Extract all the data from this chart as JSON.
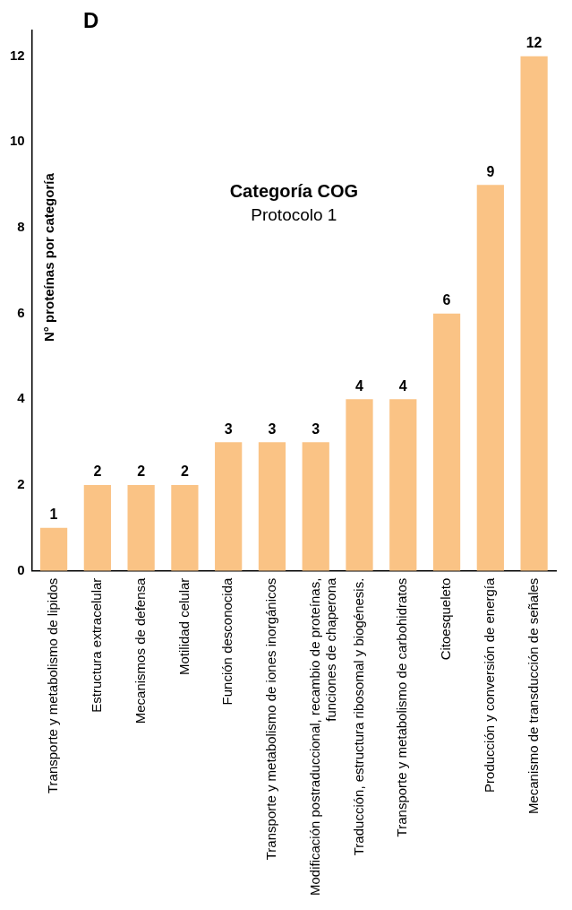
{
  "chart_data": {
    "type": "bar",
    "title": "Categoría COG",
    "subtitle": "Protocolo 1",
    "ylabel": "N° proteínas por categoría",
    "annotations": [
      "D"
    ],
    "categories": [
      "Transporte y metabolismo de lipidos",
      "Estructura extracelular",
      "Mecanismos de defensa",
      "Motilidad celular",
      "Función desconocida",
      "Transporte y metabolismo de iones inorgánicos",
      "Modificación postraduccional, recambio de proteínas,\nfunciones de chaperona",
      "Traducción, estructura ribosomal y biogénesis.",
      "Transporte y metabolismo de carbohidratos",
      "Citoesqueleto",
      "Producción y conversión de energía",
      "Mecanismo de transducción de señales"
    ],
    "values": [
      1,
      2,
      2,
      2,
      3,
      3,
      3,
      4,
      4,
      6,
      9,
      12
    ],
    "color": "#fac385",
    "data_labels": true,
    "grid": false,
    "legend": false,
    "ylim": [
      0,
      12.6
    ],
    "yticks": [
      0,
      2,
      4,
      6,
      8,
      10,
      12
    ]
  }
}
